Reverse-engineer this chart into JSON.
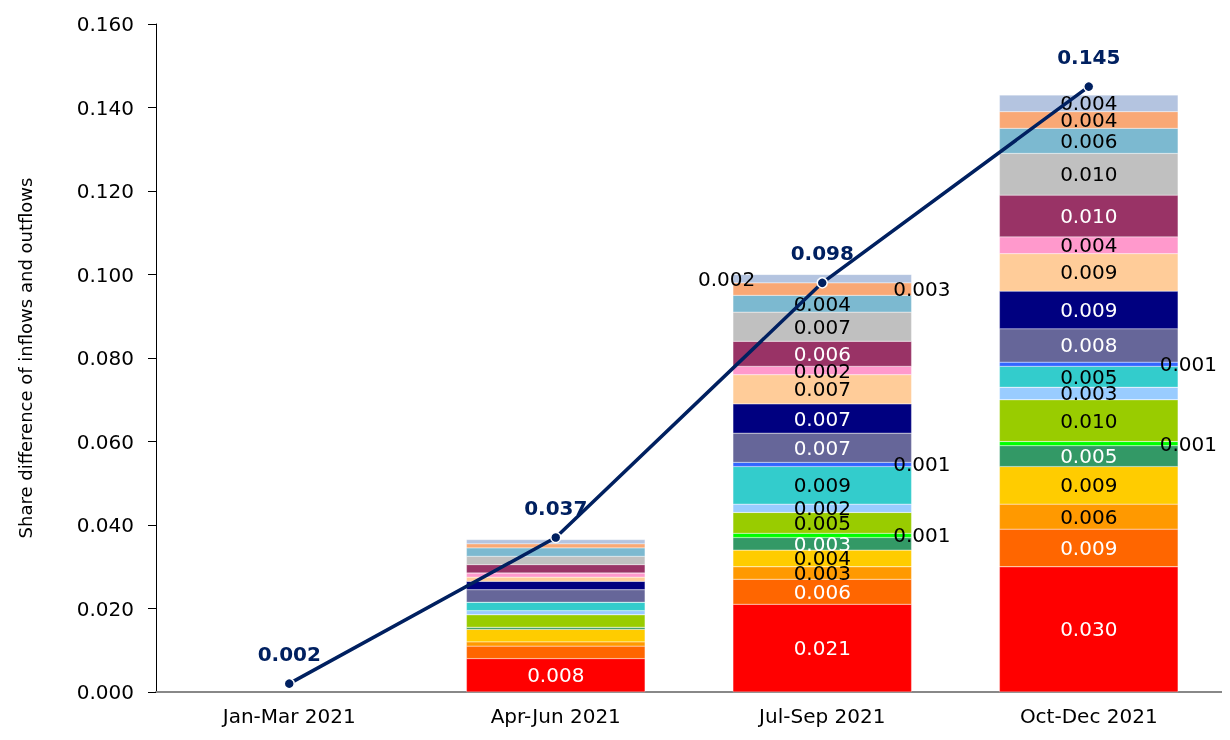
{
  "chart_data": {
    "type": "bar",
    "stacked": true,
    "ylabel": "Share difference of inflows and outflows",
    "categories": [
      "Jan-Mar 2021",
      "Apr-Jun 2021",
      "Jul-Sep 2021",
      "Oct-Dec 2021"
    ],
    "ylim": [
      0,
      0.16
    ],
    "yticks": [
      {
        "value": 0,
        "label": "0.000"
      },
      {
        "value": 0.02,
        "label": "0.020"
      },
      {
        "value": 0.04,
        "label": "0.040"
      },
      {
        "value": 0.06,
        "label": "0.060"
      },
      {
        "value": 0.08,
        "label": "0.080"
      },
      {
        "value": 0.1,
        "label": "0.100"
      },
      {
        "value": 0.12,
        "label": "0.120"
      },
      {
        "value": 0.14,
        "label": "0.140"
      },
      {
        "value": 0.16,
        "label": "0.160"
      }
    ],
    "series": [
      {
        "color": "#ff0000",
        "values": [
          null,
          0.008,
          0.021,
          0.03
        ],
        "value_labels": [
          null,
          "0.008",
          "0.021",
          "0.030"
        ]
      },
      {
        "color": "#ff6600",
        "values": [
          null,
          0.003,
          0.006,
          0.009
        ],
        "value_labels": [
          null,
          null,
          "0.006",
          "0.009"
        ]
      },
      {
        "color": "#ff9900",
        "values": [
          null,
          0.001,
          0.003,
          0.006
        ],
        "value_labels": [
          null,
          null,
          "0.003",
          "0.006"
        ]
      },
      {
        "color": "#ffcc00",
        "values": [
          null,
          0.003,
          0.004,
          0.009
        ],
        "value_labels": [
          null,
          null,
          "0.004",
          "0.009"
        ]
      },
      {
        "color": "#339966",
        "values": [
          null,
          0.0005,
          0.003,
          0.005
        ],
        "value_labels": [
          null,
          null,
          "0.003",
          "0.005"
        ]
      },
      {
        "color": "#00ff00",
        "values": [
          null,
          0,
          0.001,
          0.001
        ],
        "value_labels": [
          null,
          null,
          "0.001",
          "0.001"
        ]
      },
      {
        "color": "#99cc00",
        "values": [
          null,
          0.003,
          0.005,
          0.01
        ],
        "value_labels": [
          null,
          null,
          "0.005",
          "0.010"
        ]
      },
      {
        "color": "#99ccff",
        "values": [
          null,
          0.001,
          0.002,
          0.003
        ],
        "value_labels": [
          null,
          null,
          "0.002",
          "0.003"
        ]
      },
      {
        "color": "#33cccc",
        "values": [
          null,
          0.002,
          0.009,
          0.005
        ],
        "value_labels": [
          null,
          null,
          "0.009",
          "0.005"
        ]
      },
      {
        "color": "#3366ff",
        "values": [
          null,
          null,
          0.001,
          0.001
        ],
        "value_labels": [
          null,
          null,
          "0.001",
          "0.001"
        ]
      },
      {
        "color": "#666699",
        "values": [
          null,
          0.003,
          0.007,
          0.008
        ],
        "value_labels": [
          null,
          null,
          "0.007",
          "0.008"
        ]
      },
      {
        "color": "#000080",
        "values": [
          null,
          0.002,
          0.007,
          0.009
        ],
        "value_labels": [
          null,
          null,
          "0.007",
          "0.009"
        ]
      },
      {
        "color": "#ffcc99",
        "values": [
          null,
          0.001,
          0.007,
          0.009
        ],
        "value_labels": [
          null,
          null,
          "0.007",
          "0.009"
        ]
      },
      {
        "color": "#ff99cc",
        "values": [
          null,
          0.001,
          0.002,
          0.004
        ],
        "value_labels": [
          null,
          null,
          "0.002",
          "0.004"
        ]
      },
      {
        "color": "#993366",
        "values": [
          null,
          0.002,
          0.006,
          0.01
        ],
        "value_labels": [
          null,
          null,
          "0.006",
          "0.010"
        ]
      },
      {
        "color": "#c0c0c0",
        "values": [
          null,
          0.002,
          0.007,
          0.01
        ],
        "value_labels": [
          null,
          null,
          "0.007",
          "0.010"
        ]
      },
      {
        "color": "#7cb9d0",
        "values": [
          null,
          0.002,
          0.004,
          0.006
        ],
        "value_labels": [
          null,
          null,
          "0.004",
          "0.006"
        ]
      },
      {
        "color": "#f9a875",
        "values": [
          null,
          0.001,
          0.003,
          0.004
        ],
        "value_labels": [
          null,
          null,
          "0.003",
          "0.004"
        ]
      },
      {
        "color": "#b4c4e0",
        "values": [
          null,
          0.001,
          0.002,
          0.004
        ],
        "value_labels": [
          null,
          null,
          "0.002",
          "0.004"
        ]
      },
      {
        "type": "line",
        "color": "#002060",
        "marker": "circle",
        "values": [
          0.002,
          0.037,
          0.098,
          0.145
        ],
        "value_labels": [
          "0.002",
          "0.037",
          "0.098",
          "0.145"
        ]
      }
    ]
  }
}
